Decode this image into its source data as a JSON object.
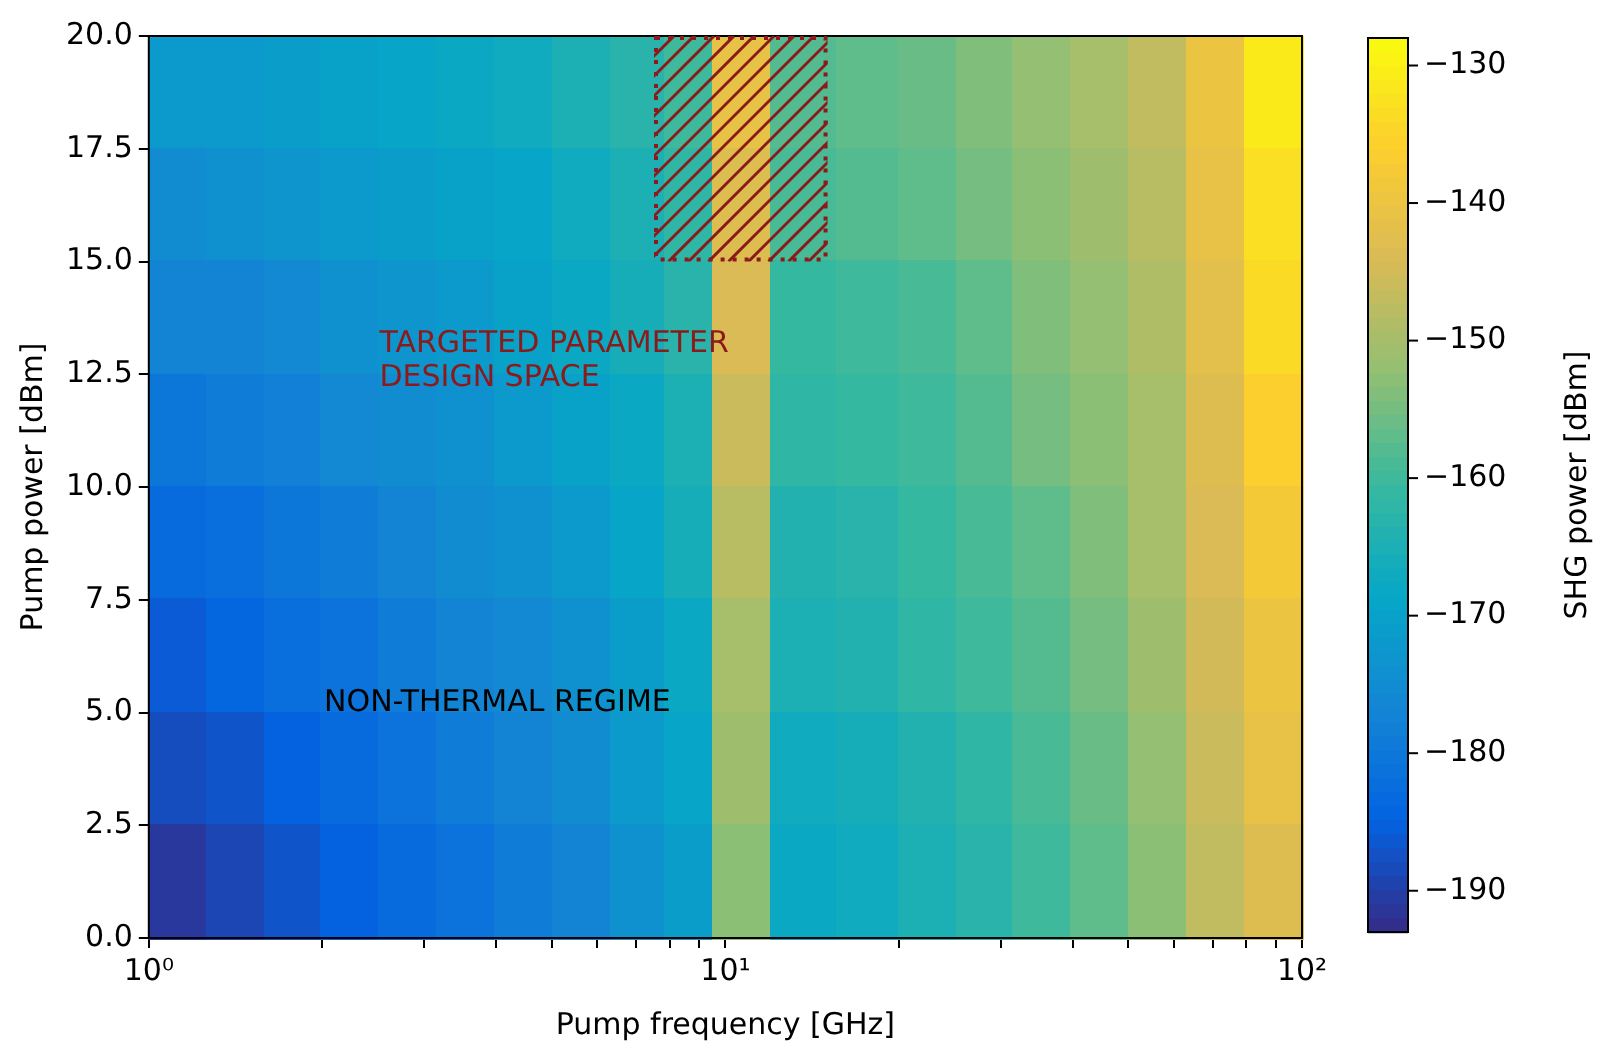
{
  "chart_data": {
    "type": "heatmap",
    "xlabel": "Pump frequency [GHz]",
    "ylabel": "Pump power [dBm]",
    "clabel": "SHG power [dBm]",
    "log": "x",
    "x": [
      1.12,
      1.41,
      1.78,
      2.24,
      2.82,
      3.55,
      4.47,
      5.62,
      7.08,
      8.66,
      10.5,
      13.6,
      17.8,
      22.4,
      28.2,
      35.5,
      44.7,
      56.2,
      70.8,
      89.1
    ],
    "cells": [
      [
        -172,
        -172,
        -171,
        -170,
        -169,
        -168,
        -167,
        -165,
        -163,
        -160,
        -141,
        -158,
        -157,
        -156,
        -154,
        -152,
        -150,
        -147,
        -140,
        -131
      ],
      [
        -175,
        -174,
        -173,
        -172,
        -171,
        -170,
        -169,
        -167,
        -165,
        -162,
        -143,
        -159,
        -158,
        -157,
        -155,
        -153,
        -151,
        -148,
        -141,
        -133
      ],
      [
        -177,
        -177,
        -176,
        -174,
        -173,
        -172,
        -170,
        -168,
        -166,
        -163,
        -144,
        -161,
        -160,
        -159,
        -157,
        -154,
        -152,
        -149,
        -142,
        -134
      ],
      [
        -180,
        -179,
        -178,
        -176,
        -175,
        -174,
        -172,
        -170,
        -168,
        -165,
        -146,
        -162,
        -161,
        -160,
        -158,
        -155,
        -153,
        -150,
        -143,
        -136
      ],
      [
        -183,
        -182,
        -180,
        -179,
        -177,
        -175,
        -174,
        -172,
        -169,
        -166,
        -148,
        -164,
        -163,
        -161,
        -159,
        -157,
        -154,
        -150,
        -144,
        -138
      ],
      [
        -186,
        -184,
        -182,
        -181,
        -179,
        -177,
        -176,
        -174,
        -171,
        -168,
        -150,
        -165,
        -164,
        -162,
        -160,
        -158,
        -155,
        -151,
        -145,
        -140
      ],
      [
        -188,
        -187,
        -185,
        -183,
        -181,
        -179,
        -177,
        -175,
        -172,
        -169,
        -151,
        -167,
        -166,
        -164,
        -162,
        -159,
        -156,
        -152,
        -146,
        -141
      ],
      [
        -191,
        -189,
        -187,
        -185,
        -183,
        -181,
        -179,
        -177,
        -174,
        -171,
        -153,
        -168,
        -167,
        -165,
        -163,
        -160,
        -157,
        -153,
        -147,
        -143
      ]
    ],
    "xlim": [
      1,
      100
    ],
    "xticks": [
      {
        "value": 1,
        "label": "10⁰"
      },
      {
        "value": 2,
        "label": null
      },
      {
        "value": 3,
        "label": null
      },
      {
        "value": 4,
        "label": null
      },
      {
        "value": 5,
        "label": null
      },
      {
        "value": 6,
        "label": null
      },
      {
        "value": 7,
        "label": null
      },
      {
        "value": 8,
        "label": null
      },
      {
        "value": 9,
        "label": null
      },
      {
        "value": 10,
        "label": "10¹"
      },
      {
        "value": 20,
        "label": null
      },
      {
        "value": 30,
        "label": null
      },
      {
        "value": 40,
        "label": null
      },
      {
        "value": 50,
        "label": null
      },
      {
        "value": 60,
        "label": null
      },
      {
        "value": 70,
        "label": null
      },
      {
        "value": 80,
        "label": null
      },
      {
        "value": 90,
        "label": null
      },
      {
        "value": 100,
        "label": "10²"
      }
    ],
    "ylim": [
      0,
      20
    ],
    "yticks": [
      {
        "value": 0,
        "label": "0.0"
      },
      {
        "value": 2.5,
        "label": "2.5"
      },
      {
        "value": 5,
        "label": "5.0"
      },
      {
        "value": 7.5,
        "label": "7.5"
      },
      {
        "value": 10,
        "label": "10.0"
      },
      {
        "value": 12.5,
        "label": "12.5"
      },
      {
        "value": 15,
        "label": "15.0"
      },
      {
        "value": 17.5,
        "label": "17.5"
      },
      {
        "value": 20,
        "label": "20.0"
      }
    ],
    "clim": [
      -193,
      -128
    ],
    "cticks": [
      {
        "value": -190,
        "label": "−190"
      },
      {
        "value": -180,
        "label": "−180"
      },
      {
        "value": -170,
        "label": "−170"
      },
      {
        "value": -160,
        "label": "−160"
      },
      {
        "value": -150,
        "label": "−150"
      },
      {
        "value": -140,
        "label": "−140"
      },
      {
        "value": -130,
        "label": "−130"
      }
    ],
    "annotations": [
      "TARGETED PARAMETER\nDESIGN SPACE",
      "NON-THERMAL REGIME"
    ]
  }
}
